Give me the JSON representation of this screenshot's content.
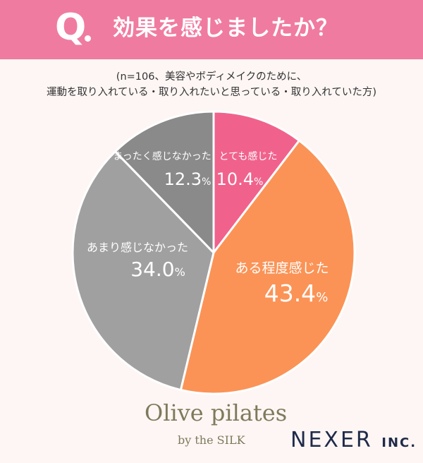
{
  "header": {
    "q_mark": "Q",
    "question": "効果を感じましたか？"
  },
  "subtitle": {
    "line1": "(n=106、美容やボディメイクのために、",
    "line2": "運動を取り入れている・取り入れたいと思っている・取り入れていた方)"
  },
  "colors": {
    "header_bg": "#f07ba0",
    "slice_pink": "#f0628c",
    "slice_orange": "#fb9356",
    "slice_gray": "#a0a0a0",
    "slice_darkgray": "#8a8a8a"
  },
  "chart_data": {
    "type": "pie",
    "slices": [
      {
        "label": "とても感じた",
        "value": 10.4,
        "value_label": "10.4",
        "color": "#f0628c"
      },
      {
        "label": "ある程度感じた",
        "value": 43.4,
        "value_label": "43.4",
        "color": "#fb9356"
      },
      {
        "label": "あまり感じなかった",
        "value": 34.0,
        "value_label": "34.0",
        "color": "#a0a0a0"
      },
      {
        "label": "まったく感じなかった",
        "value": 12.3,
        "value_label": "12.3",
        "color": "#8a8a8a"
      }
    ],
    "unit": "%"
  },
  "branding": {
    "olive": "Olive pilates",
    "silk": "by the SILK",
    "nexer": "NEXER",
    "nexer_inc": "INC."
  }
}
